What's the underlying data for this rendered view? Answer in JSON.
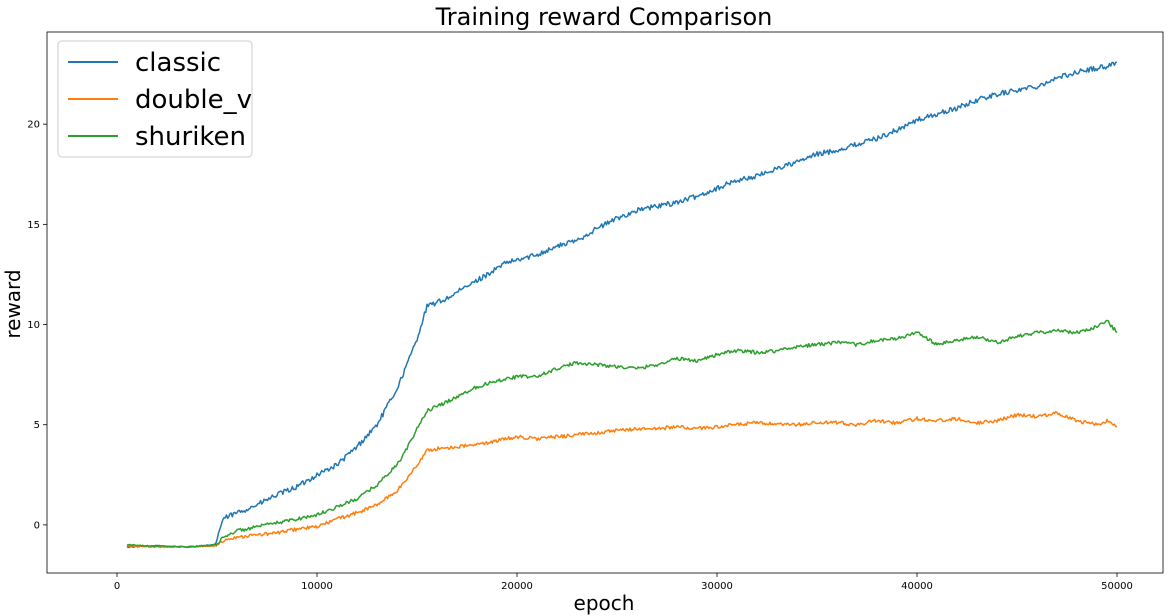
{
  "chart_data": {
    "type": "line",
    "title": "Training reward Comparison",
    "xlabel": "epoch",
    "ylabel": "reward",
    "xlim": [
      -3500,
      52300
    ],
    "ylim": [
      -2.4,
      24.6
    ],
    "xticks": [
      0,
      10000,
      20000,
      30000,
      40000,
      50000
    ],
    "xtick_labels": [
      "0",
      "10000",
      "20000",
      "30000",
      "40000",
      "50000"
    ],
    "yticks": [
      0,
      5,
      10,
      15,
      20
    ],
    "ytick_labels": [
      "0",
      "5",
      "10",
      "15",
      "20"
    ],
    "grid": false,
    "legend_position": "upper left",
    "series": [
      {
        "name": "classic",
        "color": "#1f77b4",
        "x": [
          500,
          2000,
          3500,
          4900,
          5300,
          6000,
          7000,
          8000,
          9000,
          10000,
          11000,
          12000,
          13000,
          14000,
          14500,
          15000,
          15500,
          16000,
          16500,
          17000,
          17500,
          18000,
          18500,
          19000,
          19500,
          20000,
          21000,
          22000,
          23000,
          24000,
          25000,
          26000,
          27000,
          28000,
          29000,
          30000,
          31000,
          32000,
          33000,
          34000,
          35000,
          36000,
          37000,
          38000,
          39000,
          40000,
          41000,
          42000,
          43000,
          44000,
          45000,
          46000,
          47000,
          48000,
          49000,
          49500,
          50000
        ],
        "y": [
          -1.1,
          -1.05,
          -1.1,
          -1.0,
          0.3,
          0.6,
          1.0,
          1.5,
          1.9,
          2.5,
          3.0,
          3.9,
          5.0,
          6.8,
          8.0,
          9.3,
          10.9,
          11.1,
          11.3,
          11.6,
          11.9,
          12.2,
          12.5,
          12.8,
          13.1,
          13.2,
          13.5,
          13.9,
          14.2,
          14.8,
          15.3,
          15.7,
          15.9,
          16.1,
          16.4,
          16.8,
          17.2,
          17.4,
          17.8,
          18.1,
          18.5,
          18.7,
          19.0,
          19.3,
          19.7,
          20.2,
          20.5,
          20.8,
          21.2,
          21.5,
          21.7,
          21.9,
          22.3,
          22.6,
          22.8,
          22.9,
          23.1
        ]
      },
      {
        "name": "double_v",
        "color": "#ff7f0e",
        "x": [
          500,
          2000,
          3500,
          4900,
          5500,
          6000,
          7000,
          8000,
          9000,
          10000,
          11000,
          12000,
          13000,
          14000,
          14500,
          15000,
          15500,
          16000,
          17000,
          18000,
          19000,
          20000,
          21000,
          22000,
          23000,
          24000,
          25000,
          26000,
          27000,
          28000,
          29000,
          30000,
          31000,
          32000,
          33000,
          34000,
          35000,
          36000,
          37000,
          38000,
          39000,
          40000,
          41000,
          42000,
          43000,
          44000,
          45000,
          46000,
          47000,
          48000,
          49000,
          49500,
          50000
        ],
        "y": [
          -1.05,
          -1.1,
          -1.1,
          -1.05,
          -0.7,
          -0.6,
          -0.5,
          -0.4,
          -0.2,
          -0.1,
          0.3,
          0.6,
          1.0,
          1.7,
          2.3,
          3.0,
          3.7,
          3.8,
          3.9,
          4.0,
          4.2,
          4.4,
          4.3,
          4.4,
          4.5,
          4.6,
          4.7,
          4.8,
          4.8,
          4.9,
          4.8,
          4.9,
          5.0,
          5.1,
          5.0,
          5.0,
          5.1,
          5.1,
          5.0,
          5.2,
          5.1,
          5.3,
          5.2,
          5.3,
          5.1,
          5.2,
          5.5,
          5.4,
          5.6,
          5.2,
          5.0,
          5.2,
          4.9
        ]
      },
      {
        "name": "shuriken",
        "color": "#2ca02c",
        "x": [
          500,
          2000,
          3500,
          4900,
          5500,
          6000,
          7000,
          8000,
          9000,
          10000,
          11000,
          12000,
          13000,
          14000,
          14500,
          15000,
          15500,
          16000,
          17000,
          18000,
          19000,
          20000,
          21000,
          22000,
          23000,
          24000,
          25000,
          26000,
          27000,
          28000,
          29000,
          30000,
          31000,
          32000,
          33000,
          34000,
          35000,
          36000,
          37000,
          38000,
          39000,
          40000,
          41000,
          42000,
          43000,
          44000,
          45000,
          46000,
          47000,
          48000,
          49000,
          49500,
          50000
        ],
        "y": [
          -1.0,
          -1.05,
          -1.1,
          -1.0,
          -0.5,
          -0.3,
          -0.1,
          0.1,
          0.3,
          0.5,
          0.9,
          1.3,
          2.0,
          3.0,
          3.8,
          4.8,
          5.7,
          5.9,
          6.4,
          6.9,
          7.2,
          7.4,
          7.4,
          7.8,
          8.1,
          8.0,
          7.9,
          7.8,
          8.0,
          8.3,
          8.2,
          8.5,
          8.7,
          8.6,
          8.7,
          8.9,
          9.0,
          9.1,
          9.0,
          9.2,
          9.3,
          9.6,
          9.0,
          9.2,
          9.4,
          9.1,
          9.4,
          9.6,
          9.7,
          9.6,
          9.9,
          10.2,
          9.6
        ]
      }
    ]
  }
}
